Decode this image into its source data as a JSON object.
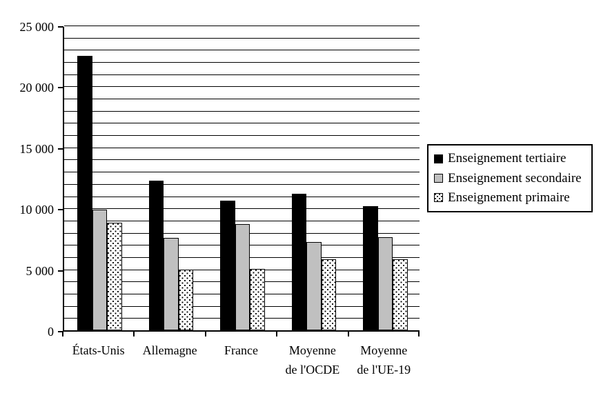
{
  "chart_data": {
    "type": "bar",
    "title": "",
    "xlabel": "",
    "ylabel": "",
    "categories": [
      "États-Unis",
      "Allemagne",
      "France",
      "Moyenne\nde l'OCDE",
      "Moyenne\nde l'UE-19"
    ],
    "series": [
      {
        "name": "Enseignement tertiaire",
        "style": "solid-black",
        "color": "#000000",
        "values": [
          22500,
          12300,
          10650,
          11200,
          10200
        ]
      },
      {
        "name": "Enseignement secondaire",
        "style": "solid-gray",
        "color": "#c0c0c0",
        "values": [
          9900,
          7600,
          8700,
          7250,
          7650
        ]
      },
      {
        "name": "Enseignement primaire",
        "style": "dotted-white",
        "color": "#ffffff",
        "values": [
          8800,
          4950,
          5050,
          5800,
          5850
        ]
      }
    ],
    "ylim": [
      0,
      25000
    ],
    "ytick_step": 5000,
    "gridline_step": 1000,
    "ytick_labels": [
      "0",
      "5 000",
      "10 000",
      "15 000",
      "20 000",
      "25 000"
    ],
    "grid": true,
    "legend_position": "right",
    "axis_color": "#000000",
    "background_color": "#ffffff"
  }
}
